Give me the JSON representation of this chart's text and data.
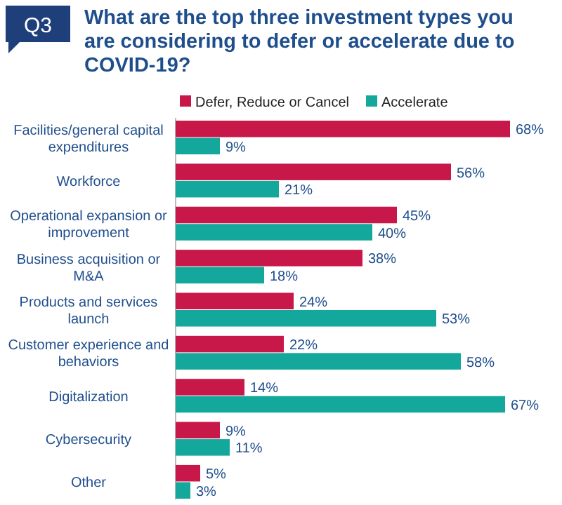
{
  "chart_data": {
    "type": "bar",
    "orientation": "horizontal",
    "title": "What are the top three investment types you are considering to defer or accelerate due to COVID-19?",
    "annotations": [
      "Q3"
    ],
    "categories": [
      "Facilities/general capital expenditures",
      "Workforce",
      "Operational expansion or improvement",
      "Business acquisition or M&A",
      "Products and services launch",
      "Customer experience and behaviors",
      "Digitalization",
      "Cybersecurity",
      "Other"
    ],
    "series": [
      {
        "name": "Defer, Reduce or Cancel",
        "color": "#c8184a",
        "values": [
          68,
          56,
          45,
          38,
          24,
          22,
          14,
          9,
          5
        ],
        "value_labels": [
          "68%",
          "56%",
          "45%",
          "38%",
          "24%",
          "22%",
          "14%",
          "9%",
          "5%"
        ]
      },
      {
        "name": "Accelerate",
        "color": "#14a89c",
        "values": [
          9,
          21,
          40,
          18,
          53,
          58,
          67,
          11,
          3
        ],
        "value_labels": [
          "9%",
          "21%",
          "40%",
          "18%",
          "53%",
          "58%",
          "67%",
          "11%",
          "3%"
        ]
      }
    ],
    "legend": "top"
  }
}
